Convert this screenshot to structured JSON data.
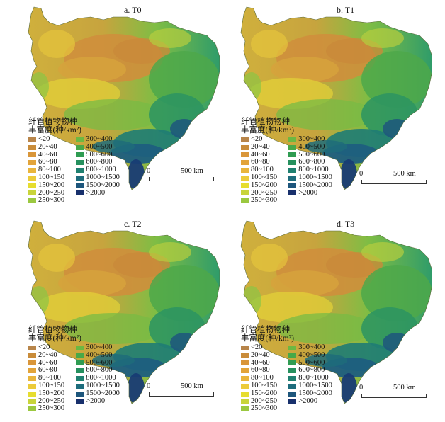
{
  "panels": [
    {
      "title": "a. T0",
      "legend_unit": "丰富度(种/km²)"
    },
    {
      "title": "b. T1",
      "legend_unit": "丰富度(种/km²)"
    },
    {
      "title": "c. T2",
      "legend_unit": "丰富度(种/km²)"
    },
    {
      "title": "d. T3",
      "legend_unit": "丰富度(种/km²)"
    }
  ],
  "legend_title": "纤管植物物种",
  "legend_classes": [
    {
      "label": "<20",
      "color": "#b8854a"
    },
    {
      "label": "20~40",
      "color": "#c98c3a"
    },
    {
      "label": "40~60",
      "color": "#d9963a"
    },
    {
      "label": "60~80",
      "color": "#e2a43a"
    },
    {
      "label": "80~100",
      "color": "#e9b53c"
    },
    {
      "label": "100~150",
      "color": "#eccb3a"
    },
    {
      "label": "150~200",
      "color": "#e6dd30"
    },
    {
      "label": "200~250",
      "color": "#c8d43a"
    },
    {
      "label": "250~300",
      "color": "#9bc840"
    },
    {
      "label": "300~400",
      "color": "#6cb842"
    },
    {
      "label": "400~500",
      "color": "#48a848"
    },
    {
      "label": "500~600",
      "color": "#2f9c52"
    },
    {
      "label": "600~800",
      "color": "#26905e"
    },
    {
      "label": "800~1000",
      "color": "#1f8070"
    },
    {
      "label": "1000~1500",
      "color": "#1d6c7c"
    },
    {
      "label": "1500~2000",
      "color": "#1d567c"
    },
    {
      "label": ">2000",
      "color": "#18306c"
    }
  ],
  "scale": {
    "start": "0",
    "end": "500 km"
  }
}
